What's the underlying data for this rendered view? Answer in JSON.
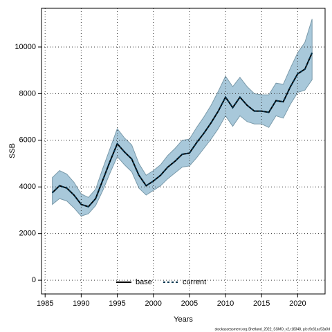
{
  "chart_data": {
    "type": "line",
    "xlabel": "Years",
    "ylabel": "SSB",
    "footnote": "stockassessment.org,Shetland_2022_SSMO_v2,r18348, git:c9c61ac53a0d",
    "x": [
      1986,
      1987,
      1988,
      1989,
      1990,
      1991,
      1992,
      1993,
      1994,
      1995,
      1996,
      1997,
      1998,
      1999,
      2000,
      2001,
      2002,
      2003,
      2004,
      2005,
      2006,
      2007,
      2008,
      2009,
      2010,
      2011,
      2012,
      2013,
      2014,
      2015,
      2016,
      2017,
      2018,
      2019,
      2020,
      2021,
      2022
    ],
    "series": [
      {
        "name": "base",
        "color": "#000000",
        "dash": false,
        "values": [
          3750,
          4050,
          3950,
          3650,
          3250,
          3150,
          3500,
          4300,
          5100,
          5850,
          5500,
          5200,
          4500,
          4050,
          4250,
          4500,
          4850,
          5100,
          5400,
          5450,
          5900,
          6300,
          6750,
          7250,
          7850,
          7400,
          7850,
          7500,
          7250,
          7250,
          7200,
          7700,
          7650,
          8300,
          8850,
          9050,
          9750
        ]
      },
      {
        "name": "current",
        "color": "#00334d",
        "dash": true,
        "values": [
          3750,
          4050,
          3950,
          3650,
          3250,
          3150,
          3500,
          4300,
          5100,
          5850,
          5500,
          5200,
          4500,
          4050,
          4250,
          4500,
          4850,
          5100,
          5400,
          5450,
          5900,
          6300,
          6750,
          7250,
          7850,
          7400,
          7850,
          7500,
          7250,
          7250,
          7200,
          7700,
          7650,
          8300,
          8850,
          9050,
          9750
        ]
      }
    ],
    "band": {
      "color": "#a8c8da",
      "edge": "#7a9aaa",
      "lower": [
        3250,
        3500,
        3400,
        3100,
        2750,
        2850,
        3200,
        3850,
        4600,
        5300,
        4950,
        4650,
        3950,
        3650,
        3850,
        4050,
        4350,
        4600,
        4850,
        4900,
        5250,
        5650,
        6050,
        6500,
        7050,
        6600,
        7050,
        6800,
        6700,
        6700,
        6550,
        7050,
        6950,
        7550,
        8050,
        8150,
        8600
      ],
      "upper": [
        4400,
        4700,
        4550,
        4200,
        3700,
        3550,
        3900,
        4800,
        5650,
        6500,
        6100,
        5800,
        5000,
        4500,
        4700,
        4950,
        5350,
        5650,
        6000,
        6050,
        6550,
        7000,
        7500,
        8100,
        8750,
        8300,
        8700,
        8300,
        8000,
        7950,
        7950,
        8450,
        8400,
        9100,
        9750,
        10200,
        11200
      ]
    },
    "xlim": [
      1984.5,
      2023.8
    ],
    "ylim": [
      -590,
      11660
    ],
    "xticks": [
      1985,
      1990,
      1995,
      2000,
      2005,
      2010,
      2015,
      2020
    ],
    "yticks": [
      0,
      2000,
      4000,
      6000,
      8000,
      10000
    ],
    "grid": true,
    "legend": "bottom"
  }
}
